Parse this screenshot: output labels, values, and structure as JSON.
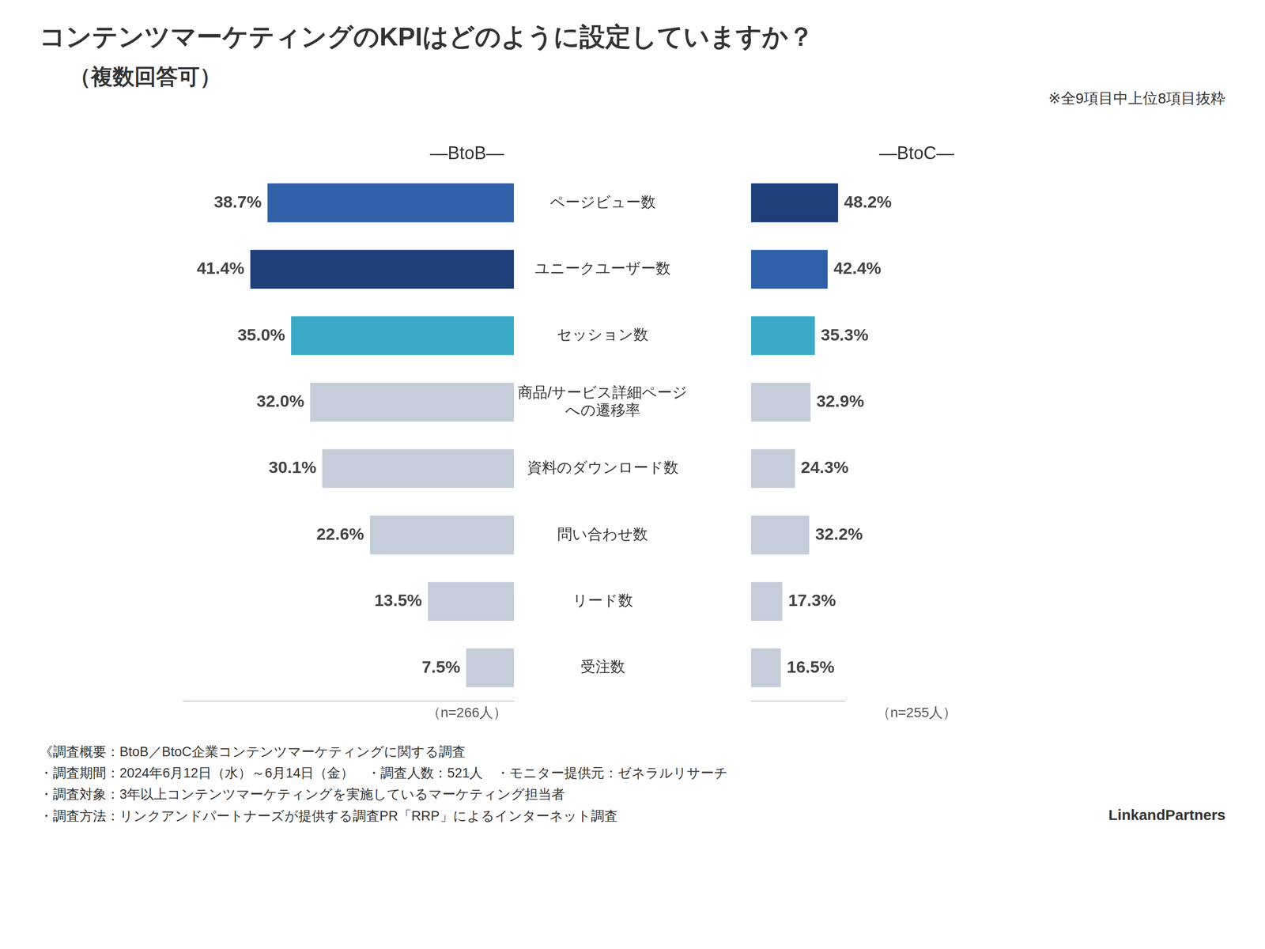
{
  "chart_data": {
    "type": "bar",
    "orientation": "horizontal",
    "title": "コンテンツマーケティングのKPIはどのように設定していますか？",
    "subtitle": "（複数回答可）",
    "categories": [
      "ページビュー数",
      "ユニークユーザー数",
      "セッション数",
      "商品/サービス詳細ページ\nへの遷移率",
      "資料のダウンロード数",
      "問い合わせ数",
      "リード数",
      "受注数"
    ],
    "series": [
      {
        "name": "―BtoB―",
        "values": [
          38.7,
          41.4,
          35.0,
          32.0,
          30.1,
          22.6,
          13.5,
          7.5
        ],
        "value_labels": [
          "38.7%",
          "41.4%",
          "35.0%",
          "32.0%",
          "30.1%",
          "22.6%",
          "13.5%",
          "7.5%"
        ],
        "colors": [
          "#3060a8",
          "#1e3f7a",
          "#3aaac8",
          "#c5cdd8",
          "#c5cdd8",
          "#c5cdd8",
          "#c5cdd8",
          "#c5cdd8"
        ]
      },
      {
        "name": "―BtoC―",
        "values": [
          48.2,
          42.4,
          35.3,
          32.9,
          24.3,
          32.2,
          17.3,
          16.5
        ],
        "value_labels": [
          "48.2%",
          "42.4%",
          "35.3%",
          "32.9%",
          "24.3%",
          "32.2%",
          "17.3%",
          "16.5%"
        ],
        "colors": [
          "#1e3f7a",
          "#3060a8",
          "#3aaac8",
          "#c5cdd8",
          "#c5cdd8",
          "#c5cdd8",
          "#c5cdd8",
          "#c5cdd8"
        ]
      }
    ],
    "xlim": [
      0,
      52
    ],
    "grid": false,
    "tick_labels": "y",
    "data_labels": true,
    "annotations": [
      "※全9項目中上位8項目抜粋",
      "（n=266人）",
      "（n=255人）",
      "《調査概要：BtoB／BtoC企業コンテンツマーケティングに関する調査",
      "・調査期間：2024年6月12日（水）～6月14日（金）　・調査人数：521人　・モニター提供元：ゼネラルリサーチ",
      "・調査対象：3年以上コンテンツマーケティングを実施しているマーケティング担当者",
      "・調査方法：リンクアンドパートナーズが提供する調査PR「RRP」によるインターネット調査",
      "LinkandPartners"
    ]
  }
}
